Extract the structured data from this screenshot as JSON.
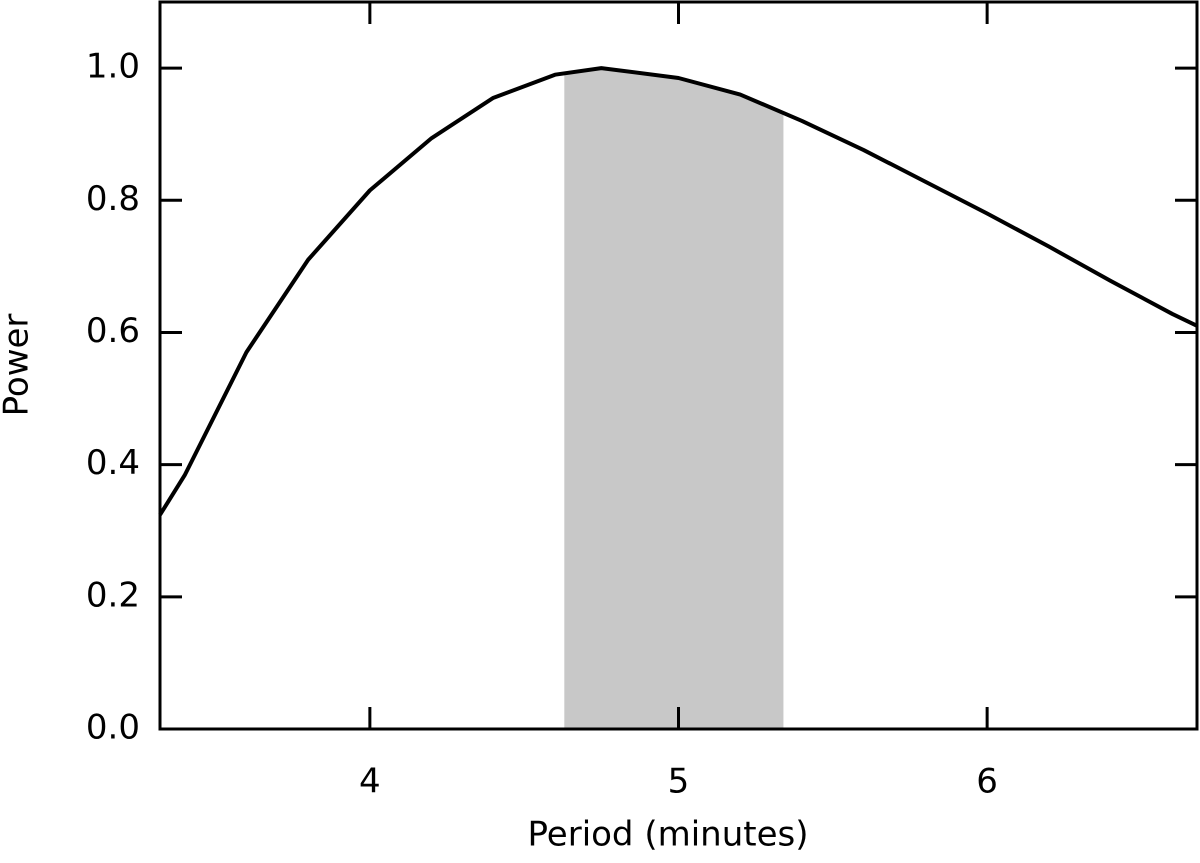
{
  "chart_data": {
    "type": "line",
    "x_label": "Period (minutes)",
    "y_label": "Power",
    "x": [
      3.32,
      3.4,
      3.6,
      3.8,
      4.0,
      4.2,
      4.4,
      4.6,
      4.75,
      5.0,
      5.2,
      5.4,
      5.6,
      5.8,
      6.0,
      6.2,
      6.4,
      6.6,
      6.68
    ],
    "series": [
      {
        "color": "#000000",
        "values": [
          0.324,
          0.384,
          0.57,
          0.71,
          0.815,
          0.894,
          0.955,
          0.99,
          1.0,
          0.985,
          0.96,
          0.92,
          0.876,
          0.828,
          0.78,
          0.73,
          0.678,
          0.628,
          0.61
        ]
      }
    ],
    "highlight_band": [
      4.63,
      5.34
    ],
    "highlight_color": "#c8c8c8",
    "xlim": [
      3.32,
      6.68
    ],
    "ylim": [
      0,
      1.1
    ],
    "xticks": [
      4,
      5,
      6
    ],
    "yticks": [
      {
        "value": 0,
        "label": "0.0"
      },
      0.2,
      0.4,
      0.6,
      0.8,
      {
        "value": 1,
        "label": "1.0"
      }
    ]
  }
}
